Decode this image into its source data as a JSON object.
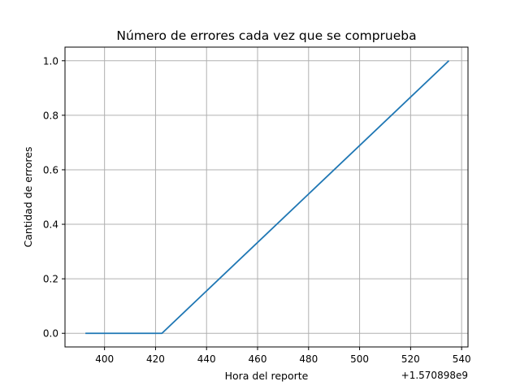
{
  "chart_data": {
    "type": "line",
    "title": "Número de errores cada vez que se comprueba",
    "xlabel": "Hora del reporte",
    "ylabel": "Cantidad de errores",
    "x_offset_label": "+1.570898e9",
    "xlim": [
      384.5,
      542.5
    ],
    "ylim": [
      -0.05,
      1.05
    ],
    "x_ticks": [
      400,
      420,
      440,
      460,
      480,
      500,
      520,
      540
    ],
    "x_tick_labels": [
      "400",
      "420",
      "440",
      "460",
      "480",
      "500",
      "520",
      "540"
    ],
    "y_ticks": [
      0.0,
      0.2,
      0.4,
      0.6,
      0.8,
      1.0
    ],
    "y_tick_labels": [
      "0.0",
      "0.2",
      "0.4",
      "0.6",
      "0.8",
      "1.0"
    ],
    "grid": true,
    "series": [
      {
        "color": "#1f77b4",
        "x": [
          392.5,
          422.5,
          535.0
        ],
        "y": [
          0.0,
          0.0,
          1.0
        ]
      }
    ]
  }
}
